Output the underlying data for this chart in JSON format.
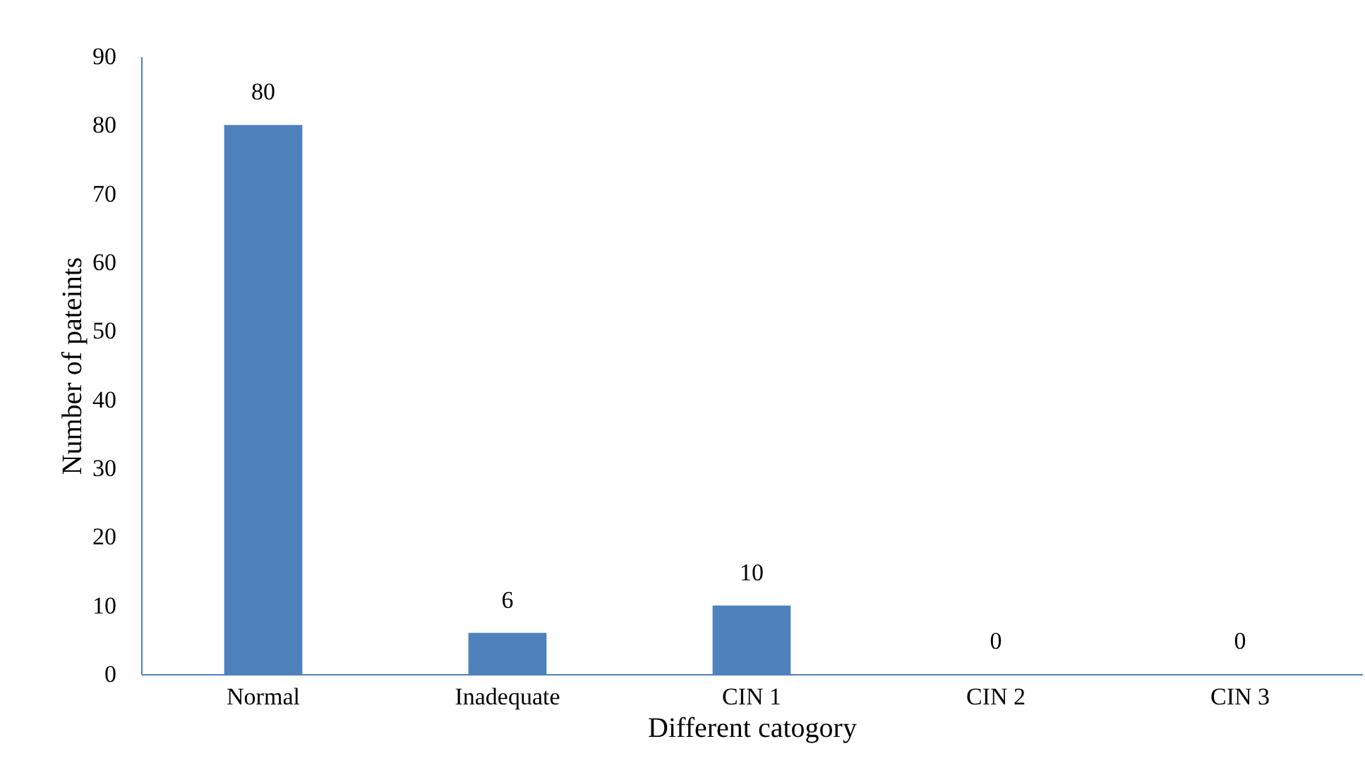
{
  "chart_data": {
    "type": "bar",
    "xlabel": "Different catogory",
    "ylabel": "Number of pateints",
    "categories": [
      "Normal",
      "Inadequate",
      "CIN 1",
      "CIN 2",
      "CIN 3"
    ],
    "values": [
      80,
      6,
      10,
      0,
      0
    ],
    "color": "#4f81bd",
    "ylim": [
      0,
      90
    ],
    "yticks": [
      0,
      10,
      20,
      30,
      40,
      50,
      60,
      70,
      80,
      90
    ],
    "data_labels": true
  }
}
